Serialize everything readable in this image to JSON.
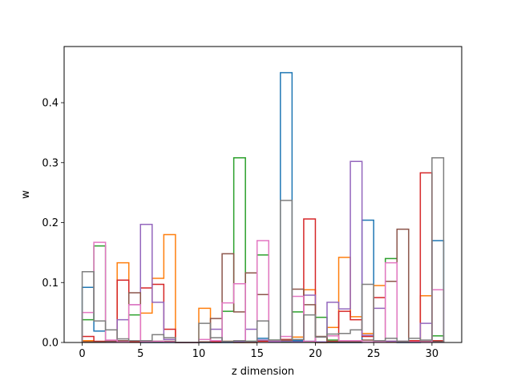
{
  "chart_data": {
    "type": "step",
    "xlabel": "z dimension",
    "ylabel": "w",
    "xlim": [
      -1.55,
      32.55
    ],
    "ylim": [
      0,
      0.4937
    ],
    "xticks": [
      0,
      5,
      10,
      15,
      20,
      25,
      30
    ],
    "yticks": [
      0.0,
      0.1,
      0.2,
      0.3,
      0.4
    ],
    "xtick_labels": [
      "0",
      "5",
      "10",
      "15",
      "20",
      "25",
      "30"
    ],
    "ytick_labels": [
      "0.0",
      "0.1",
      "0.2",
      "0.3",
      "0.4"
    ],
    "grid": false,
    "legend": false,
    "series": [
      {
        "color": "#1f77b4",
        "values": [
          0.092,
          0.019,
          0.021,
          0.001,
          0.003,
          0.0,
          0.0,
          0.0,
          0.0,
          0.0,
          0.0,
          0.0,
          0.0,
          0.0,
          0.0,
          0.007,
          0.002,
          0.45,
          0.003,
          0.002,
          0.0,
          0.0,
          0.0,
          0.0,
          0.204,
          0.003,
          0.002,
          0.0,
          0.0,
          0.001,
          0.17
        ]
      },
      {
        "color": "#ff7f0e",
        "values": [
          0.003,
          0.001,
          0.003,
          0.133,
          0.002,
          0.049,
          0.107,
          0.18,
          0.0,
          0.0,
          0.057,
          0.001,
          0.002,
          0.0,
          0.0,
          0.003,
          0.001,
          0.003,
          0.009,
          0.088,
          0.0,
          0.025,
          0.142,
          0.043,
          0.015,
          0.095,
          0.001,
          0.001,
          0.002,
          0.078,
          0.001
        ]
      },
      {
        "color": "#2ca02c",
        "values": [
          0.038,
          0.161,
          0.003,
          0.002,
          0.046,
          0.003,
          0.002,
          0.001,
          0.0,
          0.0,
          0.001,
          0.001,
          0.052,
          0.308,
          0.002,
          0.146,
          0.004,
          0.001,
          0.051,
          0.001,
          0.042,
          0.004,
          0.003,
          0.002,
          0.001,
          0.003,
          0.14,
          0.001,
          0.001,
          0.001,
          0.011
        ]
      },
      {
        "color": "#d62728",
        "values": [
          0.01,
          0.002,
          0.003,
          0.104,
          0.001,
          0.091,
          0.097,
          0.022,
          0.0,
          0.0,
          0.001,
          0.001,
          0.001,
          0.001,
          0.001,
          0.002,
          0.001,
          0.005,
          0.005,
          0.206,
          0.001,
          0.002,
          0.052,
          0.038,
          0.01,
          0.075,
          0.002,
          0.002,
          0.003,
          0.283,
          0.003
        ]
      },
      {
        "color": "#9467bd",
        "values": [
          0.001,
          0.001,
          0.001,
          0.038,
          0.063,
          0.197,
          0.067,
          0.005,
          0.0,
          0.0,
          0.001,
          0.022,
          0.001,
          0.001,
          0.022,
          0.004,
          0.001,
          0.002,
          0.001,
          0.079,
          0.001,
          0.067,
          0.056,
          0.302,
          0.012,
          0.057,
          0.002,
          0.002,
          0.001,
          0.032,
          0.001
        ]
      },
      {
        "color": "#8c564b",
        "values": [
          0.001,
          0.001,
          0.002,
          0.003,
          0.083,
          0.001,
          0.002,
          0.002,
          0.0,
          0.0,
          0.001,
          0.04,
          0.148,
          0.051,
          0.116,
          0.08,
          0.003,
          0.004,
          0.089,
          0.063,
          0.01,
          0.001,
          0.001,
          0.001,
          0.004,
          0.001,
          0.102,
          0.189,
          0.001,
          0.002,
          0.002
        ]
      },
      {
        "color": "#e377c2",
        "values": [
          0.05,
          0.167,
          0.004,
          0.001,
          0.063,
          0.001,
          0.002,
          0.001,
          0.0,
          0.0,
          0.005,
          0.003,
          0.066,
          0.098,
          0.001,
          0.17,
          0.003,
          0.01,
          0.077,
          0.002,
          0.009,
          0.011,
          0.003,
          0.003,
          0.001,
          0.001,
          0.133,
          0.001,
          0.001,
          0.001,
          0.088
        ]
      },
      {
        "color": "#7f7f7f",
        "values": [
          0.118,
          0.036,
          0.021,
          0.006,
          0.003,
          0.003,
          0.013,
          0.008,
          0.0,
          0.0,
          0.032,
          0.008,
          0.002,
          0.003,
          0.002,
          0.036,
          0.004,
          0.237,
          0.005,
          0.046,
          0.009,
          0.014,
          0.015,
          0.021,
          0.097,
          0.003,
          0.007,
          0.002,
          0.007,
          0.004,
          0.308
        ]
      }
    ]
  }
}
